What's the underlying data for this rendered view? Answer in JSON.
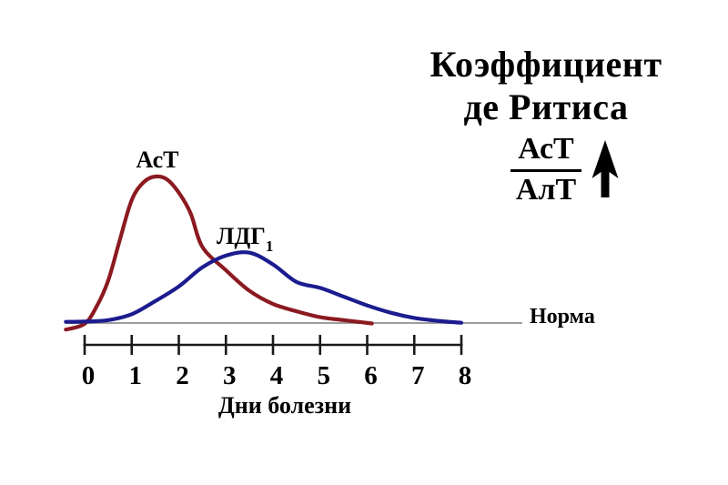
{
  "title": {
    "line1": "Коэффициент",
    "line2": "де Ритиса"
  },
  "ratio": {
    "numerator": "АсТ",
    "denominator": "АлТ",
    "direction": "up"
  },
  "curve_labels": {
    "ast": "АсТ",
    "ldh_base": "ЛДГ",
    "ldh_sub": "1"
  },
  "norm_label": "Норма",
  "axis": {
    "ticks": [
      "0",
      "1",
      "2",
      "3",
      "4",
      "5",
      "6",
      "7",
      "8"
    ],
    "xlabel": "Дни болезни"
  },
  "icons": {
    "increase_arrow": "up-arrow"
  },
  "colors": {
    "ast_curve": "#8b1a20",
    "ldh1_curve": "#1c1c8f",
    "norm_line": "#9e9e9e",
    "axis": "#1a1a1a",
    "text": "#000000",
    "background": "#ffffff"
  },
  "chart_data": {
    "type": "line",
    "title": "Коэффициент де Ритиса АсТ/АлТ ↑",
    "xlabel": "Дни болезни",
    "ylabel": "",
    "x_ticks": [
      0,
      1,
      2,
      3,
      4,
      5,
      6,
      7,
      8
    ],
    "xlim": [
      -0.4,
      9.3
    ],
    "y_units": "arbitrary units: norm line = 0, АсТ peak = 100",
    "baseline": {
      "label": "Норма",
      "value": 0
    },
    "grid": false,
    "legend_position": "labels above curve peaks",
    "series": [
      {
        "name": "АсТ",
        "color": "#8b1a20",
        "peak_day": 1.5,
        "points": [
          [
            -0.4,
            -4.5
          ],
          [
            0,
            -0.5
          ],
          [
            0.25,
            11
          ],
          [
            0.5,
            29
          ],
          [
            0.75,
            57
          ],
          [
            1,
            84
          ],
          [
            1.25,
            96
          ],
          [
            1.5,
            100
          ],
          [
            1.75,
            98
          ],
          [
            2,
            89
          ],
          [
            2.25,
            75
          ],
          [
            2.5,
            52
          ],
          [
            3,
            36
          ],
          [
            3.5,
            22
          ],
          [
            4,
            13
          ],
          [
            4.5,
            8
          ],
          [
            5,
            4
          ],
          [
            5.5,
            2
          ],
          [
            6.1,
            -0.3
          ]
        ]
      },
      {
        "name": "ЛДГ1",
        "color": "#1c1c8f",
        "peak_day": 3.5,
        "points": [
          [
            -0.4,
            0.8
          ],
          [
            0,
            1
          ],
          [
            0.5,
            2
          ],
          [
            1,
            6
          ],
          [
            1.5,
            15
          ],
          [
            2,
            25
          ],
          [
            2.5,
            38
          ],
          [
            3,
            46
          ],
          [
            3.5,
            48
          ],
          [
            4,
            40
          ],
          [
            4.5,
            28
          ],
          [
            5,
            24
          ],
          [
            5.5,
            18
          ],
          [
            6,
            12
          ],
          [
            6.5,
            7
          ],
          [
            7,
            3.5
          ],
          [
            7.5,
            1.5
          ],
          [
            8,
            0.2
          ]
        ]
      }
    ]
  }
}
